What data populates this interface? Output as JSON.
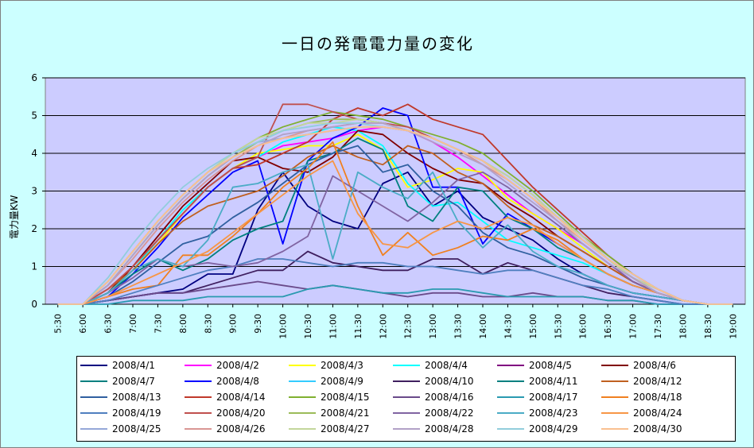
{
  "chart_data": {
    "type": "line",
    "title": "一日の発電電力量の変化",
    "ylabel": "電力量KW",
    "xlabel": "",
    "ylim": [
      0,
      6
    ],
    "yticks": [
      "0",
      "1",
      "2",
      "3",
      "4",
      "5",
      "6"
    ],
    "grid": true,
    "legend_position": "bottom",
    "categories": [
      "5:30",
      "6:00",
      "6:30",
      "7:00",
      "7:30",
      "8:00",
      "8:30",
      "9:00",
      "9:30",
      "10:00",
      "10:30",
      "11:00",
      "11:30",
      "12:00",
      "12:30",
      "13:00",
      "13:30",
      "14:00",
      "14:30",
      "15:00",
      "15:30",
      "16:00",
      "16:30",
      "17:00",
      "17:30",
      "18:00",
      "18:30",
      "19:00"
    ],
    "series": [
      {
        "name": "2008/4/1",
        "color": "#000080",
        "values": [
          0,
          0,
          0.1,
          0.2,
          0.3,
          0.4,
          0.8,
          0.8,
          2.5,
          3.5,
          2.6,
          2.2,
          2.0,
          3.2,
          3.5,
          2.6,
          3.0,
          2.3,
          2.0,
          1.7,
          1.2,
          0.8,
          0.5,
          0.3,
          0.2,
          0.1,
          0,
          0
        ]
      },
      {
        "name": "2008/4/2",
        "color": "#ff00ff",
        "values": [
          0,
          0,
          0.3,
          0.9,
          1.6,
          2.4,
          3.1,
          3.6,
          3.9,
          4.2,
          4.3,
          4.4,
          4.6,
          4.7,
          4.6,
          4.3,
          3.9,
          3.4,
          2.9,
          2.4,
          2.0,
          1.6,
          1.1,
          0.6,
          0.3,
          0.1,
          0,
          0
        ]
      },
      {
        "name": "2008/4/3",
        "color": "#ffff00",
        "values": [
          0,
          0,
          0.3,
          0.9,
          1.6,
          2.4,
          3.1,
          3.6,
          4.0,
          4.1,
          4.2,
          4.2,
          4.5,
          4.1,
          3.1,
          3.3,
          3.6,
          3.5,
          2.8,
          2.4,
          2.0,
          1.5,
          1.0,
          0.6,
          0.3,
          0.1,
          0,
          0
        ]
      },
      {
        "name": "2008/4/4",
        "color": "#00ffff",
        "values": [
          0,
          0,
          0.3,
          0.9,
          1.7,
          2.5,
          3.1,
          3.6,
          3.9,
          4.3,
          4.5,
          4.7,
          4.6,
          4.2,
          3.2,
          2.6,
          2.7,
          2.2,
          1.7,
          1.5,
          1.3,
          1.1,
          0.8,
          0.5,
          0.3,
          0.1,
          0,
          0
        ]
      },
      {
        "name": "2008/4/6",
        "color": "#800000",
        "values": [
          0,
          0,
          0.3,
          1.0,
          1.8,
          2.6,
          3.2,
          3.8,
          3.9,
          3.6,
          3.5,
          3.9,
          4.6,
          4.5,
          4.0,
          3.6,
          3.3,
          3.2,
          2.7,
          2.3,
          1.8,
          1.4,
          1.0,
          0.6,
          0.3,
          0.1,
          0,
          0
        ]
      },
      {
        "name": "2008/4/8",
        "color": "#0000ff",
        "values": [
          0,
          0,
          0.2,
          0.8,
          1.5,
          2.3,
          2.9,
          3.5,
          3.8,
          1.6,
          3.8,
          4.4,
          4.7,
          5.2,
          5.0,
          3.1,
          3.1,
          1.6,
          2.4,
          2.0,
          1.6,
          1.2,
          0.8,
          0.5,
          0.3,
          0.1,
          0,
          0
        ]
      },
      {
        "name": "2008/4/10",
        "color": "#3f1f5f",
        "values": [
          0,
          0,
          0.1,
          0.2,
          0.3,
          0.3,
          0.5,
          0.7,
          0.9,
          0.9,
          1.4,
          1.1,
          1.0,
          0.9,
          0.9,
          1.2,
          1.2,
          0.8,
          1.1,
          0.9,
          0.7,
          0.5,
          0.3,
          0.2,
          0.1,
          0,
          0,
          0
        ]
      },
      {
        "name": "2008/4/11",
        "color": "#008080",
        "values": [
          0,
          0,
          0.3,
          0.8,
          1.2,
          0.9,
          1.2,
          1.7,
          2.0,
          2.2,
          3.8,
          4.0,
          4.4,
          4.1,
          2.6,
          2.2,
          3.1,
          3.0,
          2.3,
          2.0,
          1.5,
          1.2,
          0.8,
          0.5,
          0.3,
          0.1,
          0,
          0
        ]
      },
      {
        "name": "2008/4/12",
        "color": "#c06020",
        "values": [
          0,
          0,
          0.4,
          0.9,
          1.6,
          2.2,
          2.6,
          2.8,
          3.0,
          3.4,
          3.9,
          4.2,
          3.9,
          3.7,
          4.2,
          4.0,
          3.5,
          3.2,
          2.6,
          2.1,
          1.8,
          1.4,
          1.0,
          0.6,
          0.3,
          0.1,
          0,
          0
        ]
      },
      {
        "name": "2008/4/13",
        "color": "#3060a0",
        "values": [
          0,
          0,
          0.2,
          0.6,
          1.1,
          1.6,
          1.8,
          2.3,
          2.7,
          3.2,
          3.7,
          4.0,
          4.2,
          3.5,
          3.7,
          3.0,
          2.6,
          1.9,
          1.5,
          1.3,
          1.0,
          0.7,
          0.5,
          0.3,
          0.2,
          0.1,
          0,
          0
        ]
      },
      {
        "name": "2008/4/14",
        "color": "#c0392b",
        "values": [
          0,
          0,
          0.4,
          1.0,
          1.7,
          2.4,
          3.1,
          3.6,
          3.7,
          4.0,
          4.3,
          4.9,
          5.2,
          5.0,
          5.3,
          4.9,
          4.7,
          4.5,
          3.8,
          3.1,
          2.5,
          1.9,
          1.3,
          0.8,
          0.4,
          0.1,
          0,
          0
        ]
      },
      {
        "name": "2008/4/15",
        "color": "#80b030",
        "values": [
          0,
          0,
          0.6,
          1.4,
          2.2,
          2.9,
          3.5,
          4.0,
          4.4,
          4.7,
          4.9,
          5.1,
          5.0,
          4.9,
          4.7,
          4.5,
          4.3,
          4.0,
          3.5,
          3.0,
          2.4,
          1.8,
          1.3,
          0.8,
          0.4,
          0.1,
          0,
          0
        ]
      },
      {
        "name": "2008/4/16",
        "color": "#6a4a8a",
        "values": [
          0,
          0,
          0.1,
          0.2,
          0.3,
          0.3,
          0.4,
          0.5,
          0.6,
          0.5,
          0.4,
          0.5,
          0.4,
          0.3,
          0.2,
          0.3,
          0.3,
          0.2,
          0.2,
          0.3,
          0.2,
          0.2,
          0.1,
          0.1,
          0,
          0,
          0,
          0
        ]
      },
      {
        "name": "2008/4/17",
        "color": "#2a9ab0",
        "values": [
          0,
          0,
          0,
          0.1,
          0.1,
          0.1,
          0.2,
          0.2,
          0.2,
          0.2,
          0.4,
          0.5,
          0.4,
          0.3,
          0.3,
          0.4,
          0.4,
          0.3,
          0.2,
          0.2,
          0.2,
          0.2,
          0.1,
          0.1,
          0,
          0,
          0,
          0
        ]
      },
      {
        "name": "2008/4/18",
        "color": "#f08020",
        "values": [
          0,
          0,
          0.2,
          0.4,
          0.5,
          1.3,
          1.3,
          1.8,
          2.4,
          3.1,
          3.6,
          4.3,
          2.6,
          1.3,
          1.9,
          1.3,
          1.5,
          1.8,
          1.7,
          2.0,
          1.7,
          1.2,
          0.8,
          0.5,
          0.3,
          0.1,
          0,
          0
        ]
      },
      {
        "name": "2008/4/19",
        "color": "#4f7fbf",
        "values": [
          0,
          0,
          0.1,
          0.3,
          0.5,
          0.7,
          0.9,
          1.0,
          1.2,
          1.2,
          1.1,
          1.0,
          1.1,
          1.1,
          1.0,
          1.0,
          0.9,
          0.8,
          0.9,
          0.9,
          0.7,
          0.5,
          0.4,
          0.2,
          0.1,
          0,
          0,
          0
        ]
      },
      {
        "name": "2008/4/20",
        "color": "#c0504d",
        "values": [
          0,
          0,
          0.4,
          1.0,
          1.7,
          2.4,
          3.1,
          3.6,
          3.9,
          5.3,
          5.3,
          5.1,
          4.9,
          4.8,
          4.7,
          4.4,
          4.1,
          3.8,
          3.3,
          2.8,
          2.3,
          1.8,
          1.2,
          0.7,
          0.4,
          0.1,
          0,
          0
        ]
      },
      {
        "name": "2008/4/21",
        "color": "#9bbb59",
        "values": [
          0,
          0,
          0.5,
          1.3,
          2.1,
          2.8,
          3.4,
          3.9,
          4.3,
          4.6,
          4.8,
          4.9,
          4.9,
          4.8,
          4.6,
          4.4,
          4.1,
          3.8,
          3.4,
          2.9,
          2.3,
          1.7,
          1.2,
          0.7,
          0.3,
          0.1,
          0,
          0
        ]
      },
      {
        "name": "2008/4/22",
        "color": "#8064a2",
        "values": [
          0,
          0,
          0.3,
          0.7,
          1.2,
          1.0,
          1.1,
          1.0,
          1.1,
          1.4,
          1.8,
          3.4,
          3.0,
          2.6,
          2.2,
          2.7,
          3.3,
          3.5,
          3.1,
          2.6,
          2.1,
          1.6,
          1.1,
          0.6,
          0.3,
          0.1,
          0,
          0
        ]
      },
      {
        "name": "2008/4/23",
        "color": "#4bacc6",
        "values": [
          0,
          0,
          0.3,
          0.9,
          1.2,
          1.0,
          1.7,
          3.1,
          3.2,
          3.5,
          3.7,
          1.2,
          3.5,
          3.1,
          2.8,
          3.5,
          2.2,
          1.5,
          2.1,
          1.4,
          1.0,
          0.8,
          0.5,
          0.3,
          0.2,
          0.1,
          0,
          0
        ]
      },
      {
        "name": "2008/4/24",
        "color": "#f79646",
        "values": [
          0,
          0,
          0.2,
          0.5,
          0.8,
          1.1,
          1.4,
          1.9,
          2.4,
          2.9,
          3.4,
          3.8,
          2.4,
          1.6,
          1.5,
          1.9,
          2.2,
          2.0,
          2.3,
          2.1,
          1.6,
          1.2,
          0.8,
          0.5,
          0.3,
          0.1,
          0,
          0
        ]
      },
      {
        "name": "2008/4/25",
        "color": "#95a8d8",
        "values": [
          0,
          0,
          0.6,
          1.4,
          2.2,
          2.9,
          3.5,
          4.0,
          4.3,
          4.4,
          4.5,
          4.6,
          4.7,
          4.7,
          4.6,
          4.4,
          4.1,
          3.8,
          3.3,
          2.8,
          2.3,
          1.7,
          1.2,
          0.8,
          0.4,
          0.1,
          0,
          0
        ]
      },
      {
        "name": "2008/4/26",
        "color": "#d99694",
        "values": [
          0,
          0,
          0.5,
          1.2,
          2.0,
          2.7,
          3.3,
          3.8,
          4.2,
          4.4,
          4.6,
          4.7,
          4.8,
          4.8,
          4.6,
          4.4,
          4.1,
          3.7,
          3.3,
          2.8,
          2.2,
          1.7,
          1.2,
          0.7,
          0.3,
          0.1,
          0,
          0
        ]
      },
      {
        "name": "2008/4/27",
        "color": "#c3d69b",
        "values": [
          0,
          0,
          0.6,
          1.4,
          2.2,
          2.9,
          3.5,
          4.0,
          4.4,
          4.6,
          4.8,
          4.8,
          4.9,
          4.8,
          4.6,
          4.4,
          4.1,
          3.8,
          3.4,
          2.9,
          2.3,
          1.8,
          1.2,
          0.7,
          0.4,
          0.1,
          0,
          0
        ]
      },
      {
        "name": "2008/4/28",
        "color": "#b2a1c7",
        "values": [
          0,
          0,
          0.5,
          1.3,
          2.1,
          2.8,
          3.4,
          3.9,
          4.2,
          4.5,
          4.6,
          4.7,
          4.8,
          4.8,
          4.6,
          4.3,
          4.0,
          3.7,
          3.2,
          2.7,
          2.2,
          1.6,
          1.1,
          0.7,
          0.3,
          0.1,
          0,
          0
        ]
      },
      {
        "name": "2008/4/29",
        "color": "#92cddc",
        "values": [
          0,
          0,
          0.7,
          1.6,
          2.4,
          3.1,
          3.6,
          4.0,
          4.3,
          4.6,
          4.7,
          4.8,
          4.8,
          4.7,
          4.6,
          4.4,
          4.1,
          3.8,
          3.3,
          2.8,
          2.3,
          1.7,
          1.2,
          0.8,
          0.4,
          0.1,
          0,
          0
        ]
      },
      {
        "name": "2008/4/30",
        "color": "#fac090",
        "values": [
          0,
          0,
          0.6,
          1.4,
          2.2,
          2.9,
          3.5,
          3.9,
          4.2,
          4.4,
          4.5,
          4.6,
          4.7,
          4.7,
          4.6,
          4.4,
          4.1,
          3.8,
          3.3,
          2.8,
          2.3,
          1.7,
          1.2,
          0.8,
          0.4,
          0.1,
          0,
          0
        ]
      }
    ],
    "legend_only": [
      {
        "name": "2008/4/5",
        "color": "#800080"
      },
      {
        "name": "2008/4/7",
        "color": "#008080"
      },
      {
        "name": "2008/4/9",
        "color": "#33ccff"
      }
    ],
    "legend_order": [
      "2008/4/1",
      "2008/4/2",
      "2008/4/3",
      "2008/4/4",
      "2008/4/5",
      "2008/4/6",
      "2008/4/7",
      "2008/4/8",
      "2008/4/9",
      "2008/4/10",
      "2008/4/11",
      "2008/4/12",
      "2008/4/13",
      "2008/4/14",
      "2008/4/15",
      "2008/4/16",
      "2008/4/17",
      "2008/4/18",
      "2008/4/19",
      "2008/4/20",
      "2008/4/21",
      "2008/4/22",
      "2008/4/23",
      "2008/4/24",
      "2008/4/25",
      "2008/4/26",
      "2008/4/27",
      "2008/4/28",
      "2008/4/29",
      "2008/4/30"
    ],
    "colors": {
      "plot_background": "#ccccff",
      "chart_background": "#ccffff",
      "gridline": "#000000"
    }
  }
}
